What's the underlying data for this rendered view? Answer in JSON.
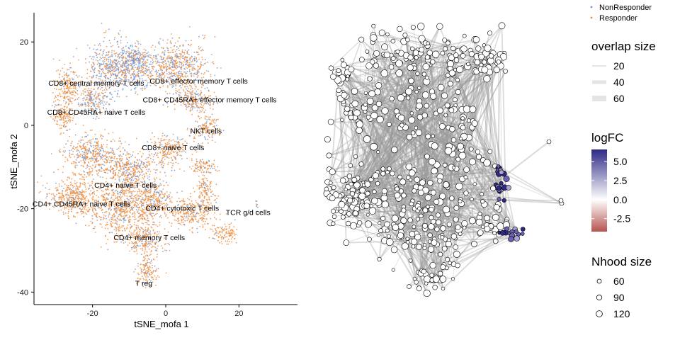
{
  "chart_data": [
    {
      "type": "scatter",
      "xlabel": "tSNE_mofa 1",
      "ylabel": "tSNE_mofa 2",
      "xlim": [
        -36,
        36
      ],
      "ylim": [
        -43,
        27
      ],
      "x_ticks": [
        -20,
        0,
        20
      ],
      "y_ticks": [
        20,
        0,
        -20,
        -40
      ],
      "grid": false,
      "legend_position": "top-right",
      "series": [
        {
          "name": "NonResponder",
          "color": "#6F97D8"
        },
        {
          "name": "Responder",
          "color": "#F28C3A"
        }
      ],
      "clusters": [
        {
          "label": "CD8+ central memory T cells",
          "x": -19,
          "y": 9.5
        },
        {
          "label": "CD8+ effector memory T cells",
          "x": 9,
          "y": 10
        },
        {
          "label": "CD8+ CD45RA+ effector memory T cells",
          "x": 12,
          "y": 5.5
        },
        {
          "label": "CD8+ CD45RA+ naive T cells",
          "x": -19,
          "y": 2.5
        },
        {
          "label": "NKT cells",
          "x": 11,
          "y": -2
        },
        {
          "label": "CD8+ naive T cells",
          "x": 2,
          "y": -6
        },
        {
          "label": "CD4+ naive T cells",
          "x": -11,
          "y": -15
        },
        {
          "label": "CD4+ CD45RA+ naive T cells",
          "x": -23,
          "y": -19.5
        },
        {
          "label": "CD4+ cytotoxic T cells",
          "x": 4.5,
          "y": -20.5
        },
        {
          "label": "TCR g/d cells",
          "x": 22.5,
          "y": -21.5
        },
        {
          "label": "CD4+ memory T cells",
          "x": -4.5,
          "y": -27.5
        },
        {
          "label": "T reg",
          "x": -6,
          "y": -38.5
        }
      ]
    },
    {
      "type": "network",
      "legend": {
        "overlap_size": {
          "title": "overlap size",
          "values": [
            20,
            40,
            60
          ]
        },
        "logFC": {
          "title": "logFC",
          "ticks": [
            5.0,
            2.5,
            0.0,
            -2.5
          ],
          "ticks_text": [
            "5.0",
            "2.5",
            "0.0",
            "-2.5"
          ],
          "range": [
            -4.2,
            6.6
          ],
          "colors": [
            "#B5534F",
            "#FFFFFF",
            "#2E2A86"
          ]
        },
        "nhood_size": {
          "title": "Nhood size",
          "values": [
            60,
            90,
            120
          ]
        }
      }
    }
  ]
}
